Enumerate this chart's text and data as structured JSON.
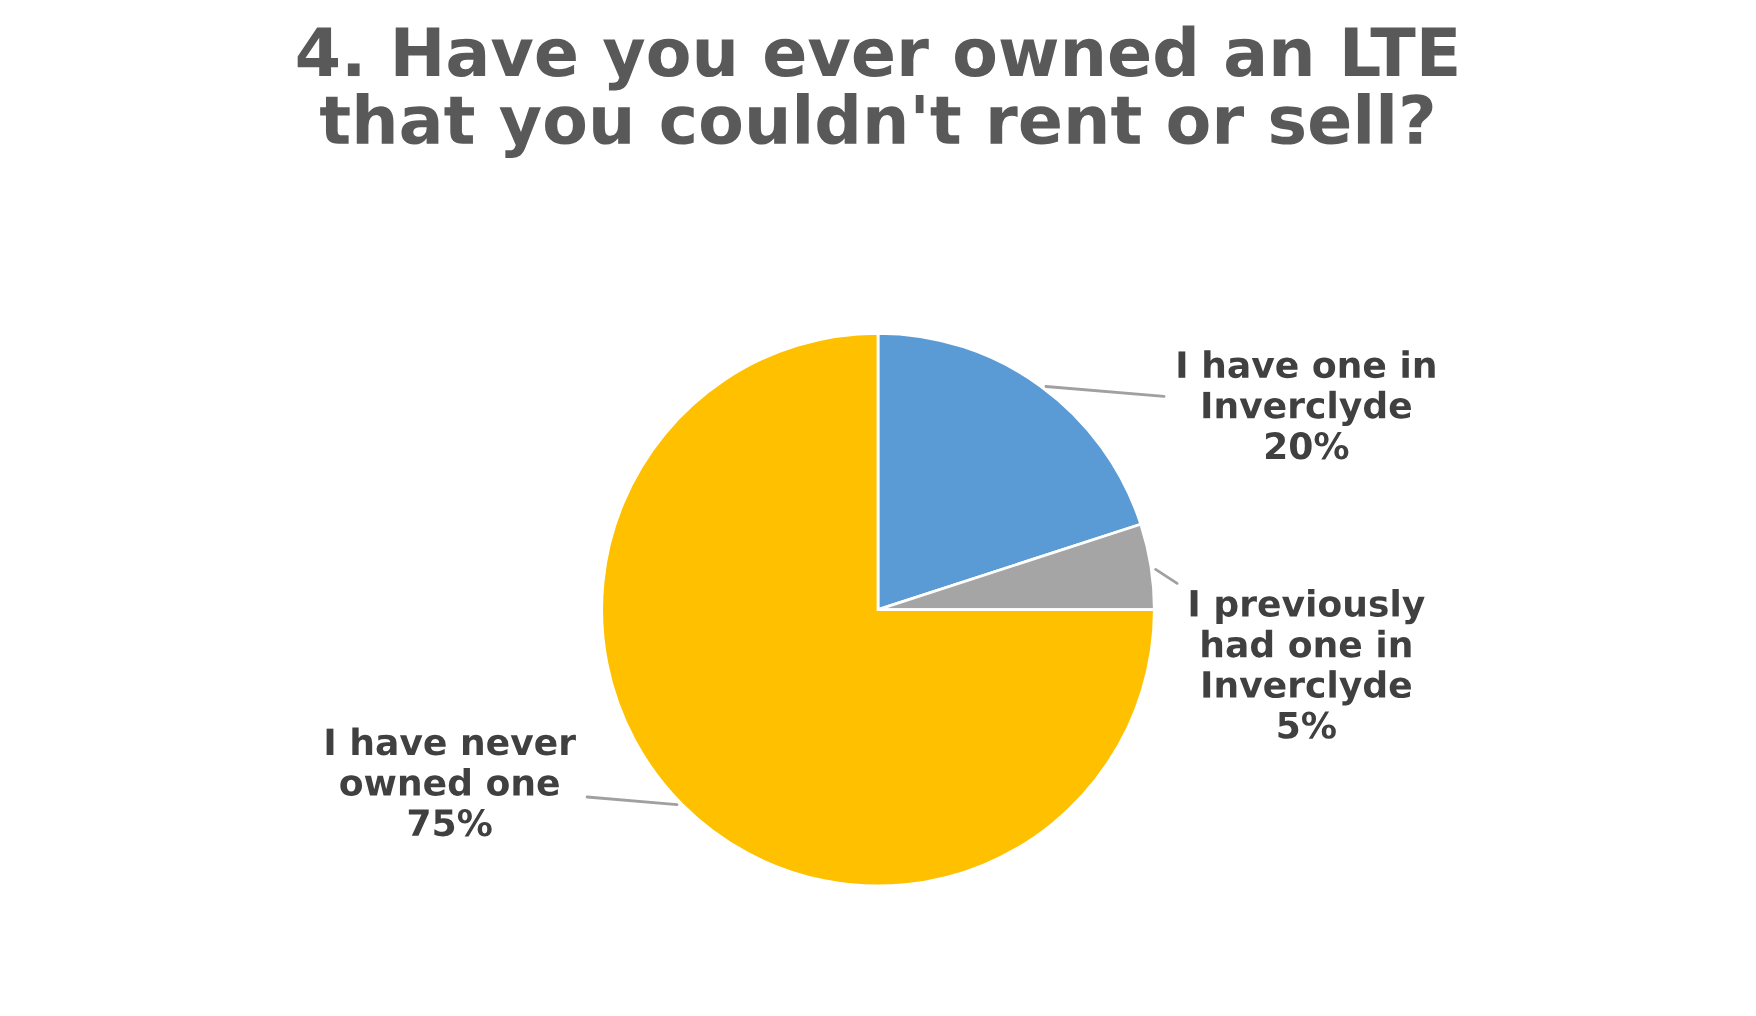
{
  "chart_data": {
    "type": "pie",
    "title": "4. Have you ever owned an LTE\nthat you couldn't rent or sell?",
    "categories": [
      "I have one in\nInverclyde",
      "I previously\nhad one in\nInverclyde",
      "I have never\nowned one"
    ],
    "values": [
      20,
      5,
      75
    ],
    "value_labels": [
      "20%",
      "5%",
      "75%"
    ],
    "colors": [
      "#5b9bd5",
      "#a5a5a5",
      "#ffc000"
    ],
    "legend": false
  }
}
